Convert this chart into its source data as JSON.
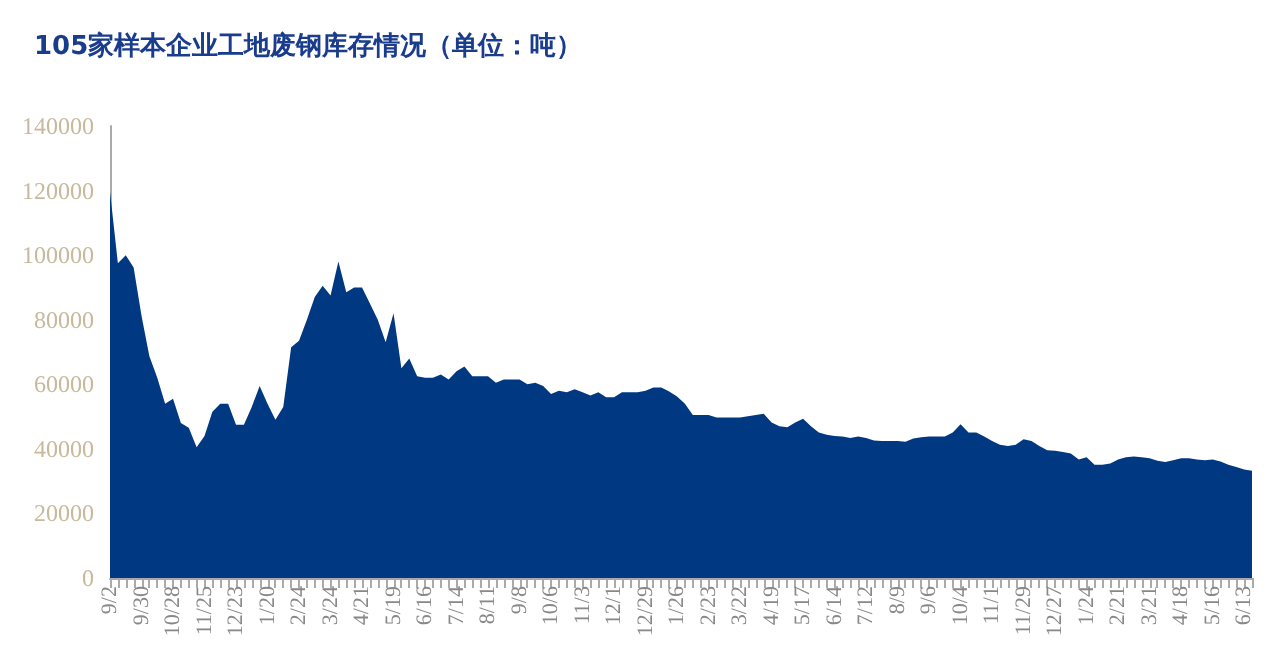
{
  "chart_data": {
    "type": "area",
    "title": "105家样本企业工地废钢库存情况（单位：吨）",
    "categories": [
      "9/2",
      null,
      null,
      null,
      "9/30",
      null,
      null,
      null,
      "10/28",
      null,
      null,
      null,
      "11/25",
      null,
      null,
      null,
      "12/23",
      null,
      null,
      null,
      "1/20",
      null,
      null,
      null,
      "2/24",
      null,
      null,
      null,
      "3/24",
      null,
      null,
      null,
      "4/21",
      null,
      null,
      null,
      "5/19",
      null,
      null,
      null,
      "6/16",
      null,
      null,
      null,
      "7/14",
      null,
      null,
      null,
      "8/11",
      null,
      null,
      null,
      "9/8",
      null,
      null,
      null,
      "10/6",
      null,
      null,
      null,
      "11/3",
      null,
      null,
      null,
      "12/1",
      null,
      null,
      null,
      "12/29",
      null,
      null,
      null,
      "1/26",
      null,
      null,
      null,
      "2/23",
      null,
      null,
      null,
      "3/22",
      null,
      null,
      null,
      "4/19",
      null,
      null,
      null,
      "5/17",
      null,
      null,
      null,
      "6/14",
      null,
      null,
      null,
      "7/12",
      null,
      null,
      null,
      "8/9",
      null,
      null,
      null,
      "9/6",
      null,
      null,
      null,
      "10/4",
      null,
      null,
      null,
      "11/1",
      null,
      null,
      null,
      "11/29",
      null,
      null,
      null,
      "12/27",
      null,
      null,
      null,
      "1/24",
      null,
      null,
      null,
      "2/21",
      null,
      null,
      null,
      "3/21",
      null,
      null,
      null,
      "4/18",
      null,
      null,
      null,
      "5/16",
      null,
      null,
      null,
      "6/13",
      null
    ],
    "series": [
      {
        "color": "#003882",
        "values": [
          119600,
          97500,
          100000,
          96200,
          81200,
          68700,
          62000,
          54000,
          55500,
          48000,
          46500,
          40500,
          44000,
          51500,
          54000,
          54000,
          47500,
          47500,
          53000,
          59500,
          54000,
          49000,
          53000,
          71500,
          73500,
          80000,
          87000,
          90500,
          87500,
          98000,
          88500,
          90000,
          90000,
          85000,
          80000,
          73000,
          82000,
          65000,
          68000,
          62500,
          62000,
          62000,
          63000,
          61500,
          64000,
          65500,
          62500,
          62500,
          62500,
          60500,
          61500,
          61500,
          61500,
          60000,
          60500,
          59500,
          57000,
          58000,
          57500,
          58500,
          57500,
          56500,
          57500,
          56000,
          56000,
          57500,
          57500,
          57500,
          58000,
          59000,
          59000,
          57800,
          56200,
          54000,
          50500,
          50500,
          50500,
          49700,
          49700,
          49700,
          49700,
          50100,
          50500,
          50900,
          48200,
          47000,
          46700,
          48200,
          49300,
          47000,
          45100,
          44400,
          44000,
          43800,
          43400,
          43800,
          43400,
          42600,
          42400,
          42400,
          42400,
          42200,
          43200,
          43600,
          43800,
          43800,
          43800,
          45100,
          47600,
          45100,
          45100,
          43800,
          42400,
          41300,
          40900,
          41300,
          43000,
          42400,
          40900,
          39600,
          39400,
          39000,
          38600,
          36700,
          37400,
          35100,
          35100,
          35500,
          36700,
          37400,
          37600,
          37400,
          37100,
          36300,
          35900,
          36500,
          37100,
          37100,
          36700,
          36500,
          36700,
          36100,
          35100,
          34400,
          33600,
          33200
        ]
      }
    ],
    "ylim": [
      0,
      140000
    ],
    "yticks": [
      0,
      20000,
      40000,
      60000,
      80000,
      100000,
      120000,
      140000
    ],
    "grid": false
  }
}
